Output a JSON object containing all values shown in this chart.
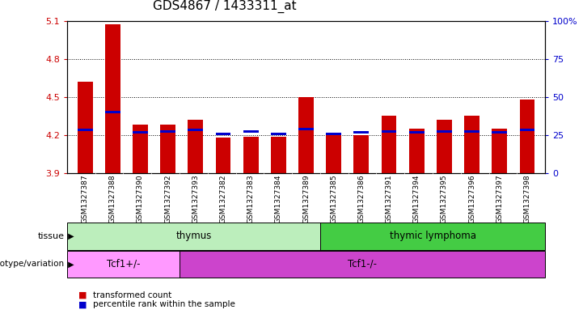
{
  "title": "GDS4867 / 1433311_at",
  "samples": [
    "GSM1327387",
    "GSM1327388",
    "GSM1327390",
    "GSM1327392",
    "GSM1327393",
    "GSM1327382",
    "GSM1327383",
    "GSM1327384",
    "GSM1327389",
    "GSM1327385",
    "GSM1327386",
    "GSM1327391",
    "GSM1327394",
    "GSM1327395",
    "GSM1327396",
    "GSM1327397",
    "GSM1327398"
  ],
  "red_values": [
    4.62,
    5.07,
    4.28,
    4.28,
    4.32,
    4.18,
    4.19,
    4.19,
    4.5,
    4.2,
    4.2,
    4.35,
    4.25,
    4.32,
    4.35,
    4.25,
    4.48
  ],
  "blue_values": [
    4.24,
    4.38,
    4.22,
    4.23,
    4.24,
    4.21,
    4.23,
    4.21,
    4.25,
    4.21,
    4.22,
    4.23,
    4.22,
    4.23,
    4.23,
    4.22,
    4.24
  ],
  "ymin": 3.9,
  "ymax": 5.1,
  "y2min": 0,
  "y2max": 100,
  "yticks": [
    3.9,
    4.2,
    4.5,
    4.8,
    5.1
  ],
  "y2ticks": [
    0,
    25,
    50,
    75,
    100
  ],
  "y2ticklabels": [
    "0",
    "25",
    "50",
    "75",
    "100%"
  ],
  "tissue_groups": [
    {
      "label": "thymus",
      "start": 0,
      "end": 8,
      "color": "#BCEEBC"
    },
    {
      "label": "thymic lymphoma",
      "start": 9,
      "end": 16,
      "color": "#44CC44"
    }
  ],
  "genotype_groups": [
    {
      "label": "Tcf1+/-",
      "start": 0,
      "end": 3,
      "color": "#FF99FF"
    },
    {
      "label": "Tcf1-/-",
      "start": 4,
      "end": 16,
      "color": "#CC44CC"
    }
  ],
  "legend_items": [
    {
      "label": "transformed count",
      "color": "#CC0000"
    },
    {
      "label": "percentile rank within the sample",
      "color": "#0000CC"
    }
  ],
  "bar_color": "#CC0000",
  "blue_color": "#0000CC",
  "bar_width": 0.55,
  "background_color": "#ffffff",
  "plot_bg": "#ffffff",
  "xtick_bg": "#DDDDDD",
  "title_fontsize": 11,
  "axis_label_color_left": "#CC0000",
  "axis_label_color_right": "#0000CC"
}
